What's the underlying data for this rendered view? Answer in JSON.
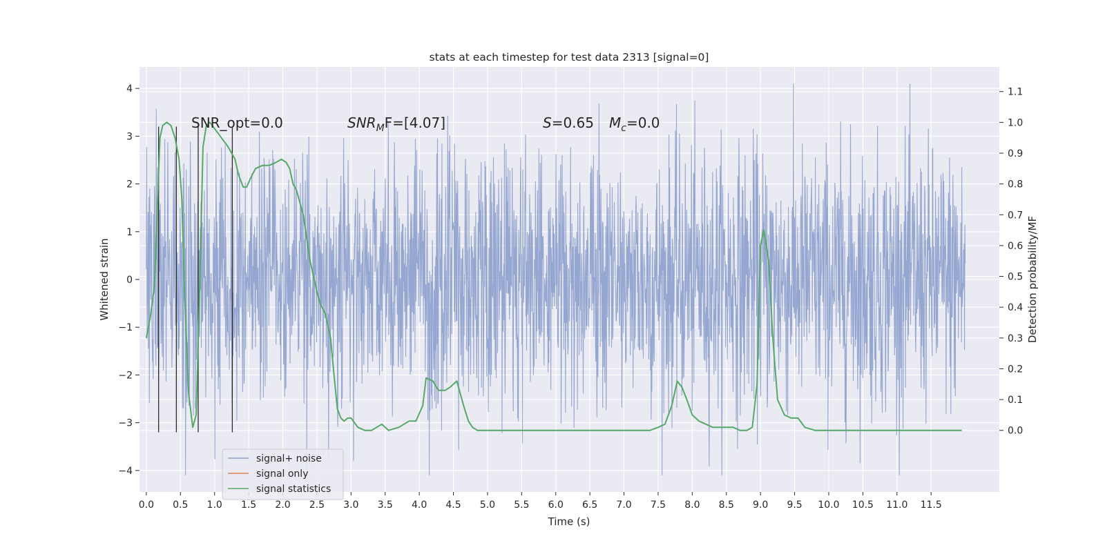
{
  "chart_data": {
    "type": "line",
    "title": "stats at each timestep for test data 2313 [signal=0]",
    "xlabel": "Time (s)",
    "ylabel_left": "Whitened strain",
    "ylabel_right": "Detection probability/MF",
    "xlim": [
      -0.1,
      12.5
    ],
    "ylim_left": [
      -4.45,
      4.45
    ],
    "ylim_right": [
      -0.2,
      1.18
    ],
    "x_ticks": [
      0.0,
      0.5,
      1.0,
      1.5,
      2.0,
      2.5,
      3.0,
      3.5,
      4.0,
      4.5,
      5.0,
      5.5,
      6.0,
      6.5,
      7.0,
      7.5,
      8.0,
      8.5,
      9.0,
      9.5,
      10.0,
      10.5,
      11.0,
      11.5
    ],
    "x_tick_labels": [
      "0.0",
      "0.5",
      "1.0",
      "1.5",
      "2.0",
      "2.5",
      "3.0",
      "3.5",
      "4.0",
      "4.5",
      "5.0",
      "5.5",
      "6.0",
      "6.5",
      "7.0",
      "7.5",
      "8.0",
      "8.5",
      "9.0",
      "9.5",
      "10.0",
      "10.5",
      "11.0",
      "11.5"
    ],
    "y_left_ticks": [
      -4,
      -3,
      -2,
      -1,
      0,
      1,
      2,
      3,
      4
    ],
    "y_left_tick_labels": [
      "−4",
      "−3",
      "−2",
      "−1",
      "0",
      "1",
      "2",
      "3",
      "4"
    ],
    "y_right_ticks": [
      0.0,
      0.1,
      0.2,
      0.3,
      0.4,
      0.5,
      0.6,
      0.7,
      0.8,
      0.9,
      1.0,
      1.1
    ],
    "y_right_tick_labels": [
      "0.0",
      "0.1",
      "0.2",
      "0.3",
      "0.4",
      "0.5",
      "0.6",
      "0.7",
      "0.8",
      "0.9",
      "1.0",
      "1.1"
    ],
    "grid": true,
    "legend_position": "lower-left",
    "annotations": {
      "snr_opt": "SNR_opt=0.0",
      "snr_mf_prefix": "SNR",
      "snr_mf_sub": "M",
      "snr_mf_suffix": "F=[4.07]",
      "s_label": "S",
      "s_value": "=0.65",
      "mc_label": "M",
      "mc_sub": "c",
      "mc_value": "=0.0"
    },
    "noise_series": {
      "name": "signal+ noise",
      "color": "#8c9fcc",
      "x_range": [
        0.0,
        12.0
      ],
      "sample_count": 2400,
      "sigma": 1.35,
      "max_abs": 4.1
    },
    "signal_only_series": {
      "name": "signal only",
      "color": "#dd8452",
      "values": []
    },
    "statistics_series": {
      "name": "signal statistics",
      "color": "#55a868",
      "x": [
        0.0,
        0.06,
        0.12,
        0.16,
        0.2,
        0.24,
        0.3,
        0.36,
        0.42,
        0.48,
        0.52,
        0.56,
        0.62,
        0.68,
        0.73,
        0.78,
        0.83,
        0.88,
        0.93,
        1.0,
        1.1,
        1.2,
        1.3,
        1.35,
        1.42,
        1.47,
        1.53,
        1.6,
        1.7,
        1.8,
        1.9,
        1.98,
        2.05,
        2.1,
        2.15,
        2.2,
        2.3,
        2.4,
        2.5,
        2.55,
        2.62,
        2.7,
        2.75,
        2.8,
        2.85,
        2.9,
        2.95,
        3.0,
        3.1,
        3.2,
        3.3,
        3.45,
        3.55,
        3.7,
        3.85,
        3.95,
        4.05,
        4.1,
        4.2,
        4.28,
        4.38,
        4.45,
        4.55,
        4.65,
        4.72,
        4.78,
        4.85,
        5.0,
        5.2,
        5.6,
        5.8,
        6.0,
        6.2,
        6.5,
        6.8,
        7.0,
        7.2,
        7.38,
        7.5,
        7.6,
        7.7,
        7.78,
        7.85,
        7.92,
        8.0,
        8.1,
        8.3,
        8.5,
        8.6,
        8.7,
        8.8,
        8.88,
        8.95,
        9.0,
        9.05,
        9.12,
        9.18,
        9.25,
        9.35,
        9.45,
        9.55,
        9.65,
        9.8,
        10.2,
        10.5,
        11.0,
        11.5,
        11.8,
        11.95
      ],
      "values": [
        0.3,
        0.37,
        0.47,
        0.72,
        0.95,
        0.99,
        1.0,
        0.99,
        0.95,
        0.88,
        0.75,
        0.45,
        0.12,
        0.01,
        0.05,
        0.45,
        0.92,
        0.99,
        1.0,
        0.98,
        0.95,
        0.92,
        0.88,
        0.83,
        0.79,
        0.79,
        0.82,
        0.85,
        0.86,
        0.86,
        0.87,
        0.88,
        0.87,
        0.85,
        0.8,
        0.78,
        0.7,
        0.55,
        0.45,
        0.41,
        0.38,
        0.3,
        0.18,
        0.07,
        0.04,
        0.03,
        0.04,
        0.04,
        0.01,
        0.0,
        0.0,
        0.02,
        0.0,
        0.01,
        0.03,
        0.03,
        0.08,
        0.17,
        0.16,
        0.13,
        0.13,
        0.14,
        0.16,
        0.08,
        0.03,
        0.01,
        0.0,
        0.0,
        0.0,
        0.0,
        0.0,
        0.0,
        0.0,
        0.0,
        0.0,
        0.0,
        0.0,
        0.0,
        0.01,
        0.02,
        0.08,
        0.16,
        0.14,
        0.1,
        0.05,
        0.03,
        0.01,
        0.01,
        0.01,
        0.0,
        0.0,
        0.01,
        0.15,
        0.6,
        0.65,
        0.55,
        0.3,
        0.1,
        0.05,
        0.04,
        0.04,
        0.01,
        0.0,
        0.0,
        0.0,
        0.0,
        0.0,
        0.0,
        0.0
      ]
    },
    "marker_lines": {
      "color": "#2a2a2a",
      "x": [
        0.18,
        0.44,
        0.76,
        1.26
      ],
      "y_top": 3.2,
      "y_bottom": -3.2
    }
  }
}
